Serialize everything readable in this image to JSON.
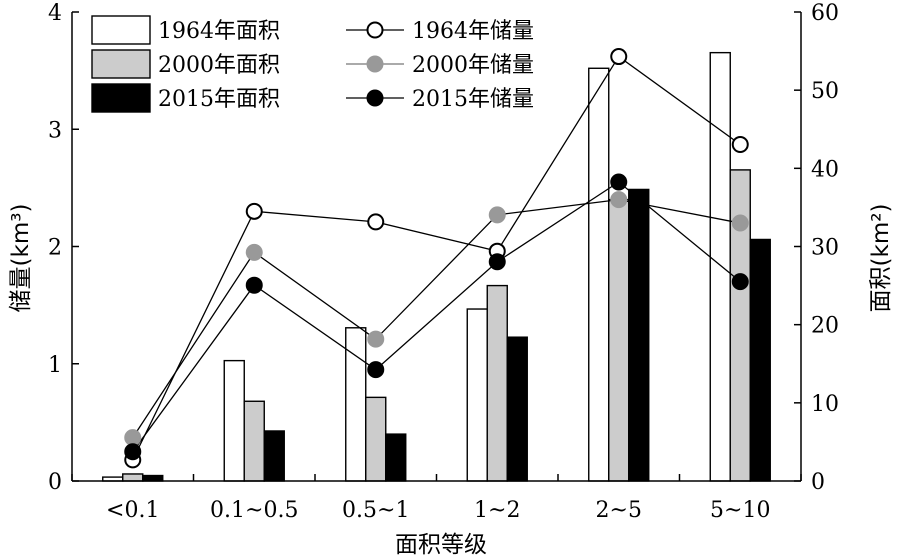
{
  "chart_data": {
    "type": "bar",
    "categories": [
      "<0.1",
      "0.1~0.5",
      "0.5~1",
      "1~2",
      "2~5",
      "5~10"
    ],
    "xlabel": "面积等级",
    "ylabel_left": "储量(km³)",
    "ylabel_right": "面积(km²)",
    "ylim_left": [
      0,
      4
    ],
    "ylim_right": [
      0,
      60
    ],
    "yticks_left": [
      "0",
      "1",
      "2",
      "3",
      "4"
    ],
    "yticks_right": [
      "0",
      "10",
      "20",
      "30",
      "40",
      "50",
      "60"
    ],
    "grid": false,
    "legend_position": "top-left",
    "bar_series": [
      {
        "name": "1964年面积",
        "axis": "right",
        "color": "#ffffff",
        "values": [
          0.5,
          15.4,
          19.6,
          22.0,
          52.8,
          54.8
        ]
      },
      {
        "name": "2000年面积",
        "axis": "right",
        "color": "#cccccc",
        "values": [
          0.9,
          10.2,
          10.7,
          25.0,
          36.0,
          39.8
        ]
      },
      {
        "name": "2015年面积",
        "axis": "right",
        "color": "#000000",
        "values": [
          0.7,
          6.4,
          6.0,
          18.4,
          37.3,
          30.9
        ]
      }
    ],
    "line_series": [
      {
        "name": "1964年储量",
        "axis": "left",
        "marker": "open",
        "color": "#000000",
        "values": [
          0.18,
          2.3,
          2.21,
          1.96,
          3.62,
          2.87
        ]
      },
      {
        "name": "2000年储量",
        "axis": "left",
        "marker": "gray",
        "color": "#999999",
        "values": [
          0.37,
          1.95,
          1.21,
          2.27,
          2.4,
          2.2
        ]
      },
      {
        "name": "2015年储量",
        "axis": "left",
        "marker": "filled",
        "color": "#000000",
        "values": [
          0.25,
          1.67,
          0.95,
          1.87,
          2.55,
          1.7
        ]
      }
    ]
  }
}
